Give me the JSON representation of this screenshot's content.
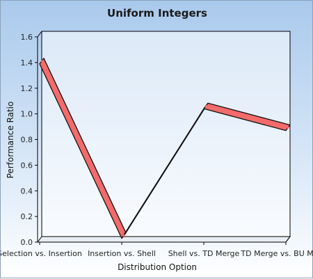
{
  "chart_data": {
    "type": "line",
    "title": "Uniform Integers",
    "xlabel": "Distribution Option",
    "ylabel": "Performance Ratio",
    "categories": [
      "Selection vs. Insertion",
      "Insertion vs. Shell",
      "Shell vs. TD Merge",
      "TD Merge vs. BU Merge"
    ],
    "series": [
      {
        "values": [
          1.39,
          0.03,
          1.04,
          0.87
        ],
        "color": "#f36b6b"
      }
    ],
    "ylim": [
      0,
      1.6
    ],
    "yticks": [
      "0.0",
      "0.2",
      "0.4",
      "0.6",
      "0.8",
      "1.0",
      "1.2",
      "1.4",
      "1.6"
    ],
    "grid": false,
    "legend": "none",
    "style": "3d-ribbon"
  }
}
